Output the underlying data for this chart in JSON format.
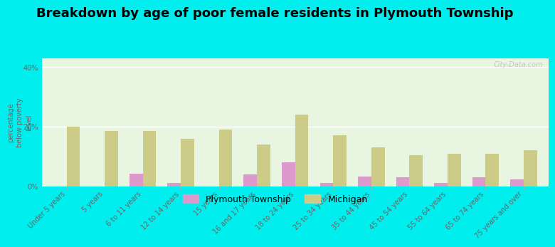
{
  "title": "Breakdown by age of poor female residents in Plymouth Township",
  "ylabel": "percentage\nbelow poverty\nlevel",
  "categories": [
    "Under 5 years",
    "5 years",
    "6 to 11 years",
    "12 to 14 years",
    "15 years",
    "16 and 17 years",
    "18 to 24 years",
    "25 to 34 years",
    "35 to 44 years",
    "45 to 54 years",
    "55 to 64 years",
    "65 to 74 years",
    "75 years and over"
  ],
  "plymouth_values": [
    0.0,
    0.0,
    4.2,
    1.2,
    0.0,
    4.0,
    8.0,
    1.0,
    3.2,
    3.0,
    1.0,
    3.0,
    2.2
  ],
  "michigan_values": [
    20.0,
    18.5,
    18.5,
    16.0,
    19.0,
    14.0,
    24.0,
    17.0,
    13.0,
    10.5,
    11.0,
    11.0,
    12.0
  ],
  "plymouth_color": "#dd99cc",
  "michigan_color": "#cccc88",
  "background_color": "#00eeee",
  "plot_bg": "#e8f5e0",
  "ylim": [
    0,
    43
  ],
  "yticks": [
    0,
    20,
    40
  ],
  "ytick_labels": [
    "0%",
    "20%",
    "40%"
  ],
  "bar_width": 0.35,
  "title_fontsize": 13,
  "tick_fontsize": 7,
  "ylabel_fontsize": 7,
  "legend_fontsize": 9,
  "watermark": "City-Data.com"
}
